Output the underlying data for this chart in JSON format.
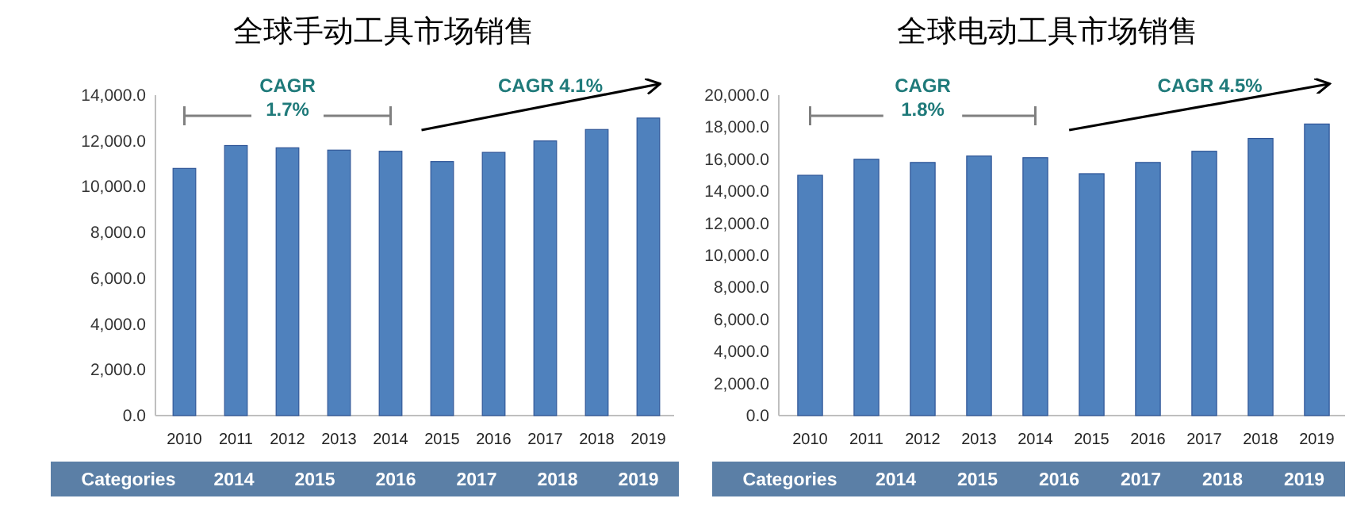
{
  "chart_data": [
    {
      "type": "bar",
      "title": "全球手动工具市场销售",
      "categories": [
        "2010",
        "2011",
        "2012",
        "2013",
        "2014",
        "2015",
        "2016",
        "2017",
        "2018",
        "2019"
      ],
      "values": [
        10800,
        11800,
        11700,
        11600,
        11550,
        11100,
        11500,
        12000,
        12500,
        13000
      ],
      "color": "#4f81bd",
      "ylim": [
        0,
        14000
      ],
      "yticks": [
        {
          "value": 0,
          "label": "0.0"
        },
        {
          "value": 2000,
          "label": "2,000.0"
        },
        {
          "value": 4000,
          "label": "4,000.0"
        },
        {
          "value": 6000,
          "label": "6,000.0"
        },
        {
          "value": 8000,
          "label": "8,000.0"
        },
        {
          "value": 10000,
          "label": "10,000.0"
        },
        {
          "value": 12000,
          "label": "12,000.0"
        },
        {
          "value": 14000,
          "label": "14,000.0"
        }
      ],
      "grid": false,
      "annotations": [
        "CAGR\n1.7%",
        "CAGR 4.1%",
        "Categories 2014 2015 2016 2017 2018 2019"
      ]
    },
    {
      "type": "bar",
      "title": "全球电动工具市场销售",
      "categories": [
        "2010",
        "2011",
        "2012",
        "2013",
        "2014",
        "2015",
        "2016",
        "2017",
        "2018",
        "2019"
      ],
      "values": [
        15000,
        16000,
        15800,
        16200,
        16100,
        15100,
        15800,
        16500,
        17300,
        18200
      ],
      "color": "#4f81bd",
      "ylim": [
        0,
        20000
      ],
      "yticks": [
        {
          "value": 0,
          "label": "0.0"
        },
        {
          "value": 2000,
          "label": "2,000.0"
        },
        {
          "value": 4000,
          "label": "4,000.0"
        },
        {
          "value": 6000,
          "label": "6,000.0"
        },
        {
          "value": 8000,
          "label": "8,000.0"
        },
        {
          "value": 10000,
          "label": "10,000.0"
        },
        {
          "value": 12000,
          "label": "12,000.0"
        },
        {
          "value": 14000,
          "label": "14,000.0"
        },
        {
          "value": 16000,
          "label": "16,000.0"
        },
        {
          "value": 18000,
          "label": "18,000.0"
        },
        {
          "value": 20000,
          "label": "20,000.0"
        }
      ],
      "grid": false,
      "annotations": [
        "CAGR\n1.8%",
        "CAGR 4.5%",
        "Categories 2014 2015 2016 2017 2018 2019"
      ]
    }
  ]
}
